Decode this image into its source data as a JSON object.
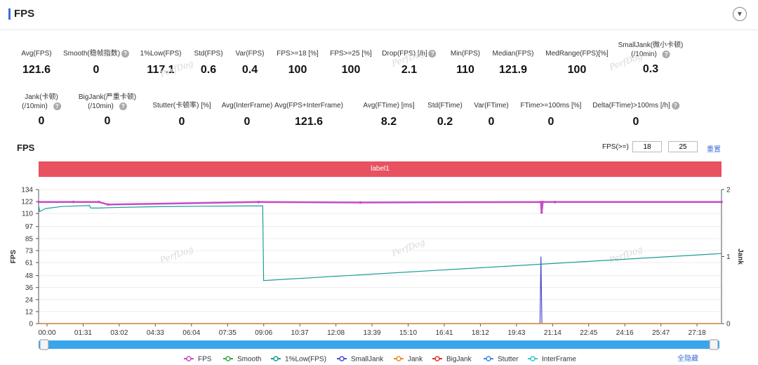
{
  "header": {
    "title": "FPS"
  },
  "stats_row1": [
    {
      "label": "Avg(FPS)",
      "value": "121.6"
    },
    {
      "label": "Smooth(稳帧指数)",
      "value": "0",
      "help": true
    },
    {
      "label": "1%Low(FPS)",
      "value": "117.1"
    },
    {
      "label": "Std(FPS)",
      "value": "0.6"
    },
    {
      "label": "Var(FPS)",
      "value": "0.4"
    },
    {
      "label": "FPS>=18 [%]",
      "value": "100"
    },
    {
      "label": "FPS>=25 [%]",
      "value": "100"
    },
    {
      "label": "Drop(FPS) [/h]",
      "value": "2.1",
      "help": true
    },
    {
      "label": "Min(FPS)",
      "value": "110"
    },
    {
      "label": "Median(FPS)",
      "value": "121.9"
    },
    {
      "label": "MedRange(FPS)[%]",
      "value": "100"
    },
    {
      "label": "SmallJank(微小卡顿)",
      "label2": "(/10min)",
      "value": "0.3",
      "help": true
    }
  ],
  "stats_row2": [
    {
      "label": "Jank(卡顿)",
      "label2": "(/10min)",
      "value": "0",
      "help": true
    },
    {
      "label": "BigJank(严重卡顿)",
      "label2": "(/10min)",
      "value": "0",
      "help": true
    },
    {
      "label": "Stutter(卡顿率) [%]",
      "value": "0"
    },
    {
      "label": "Avg(InterFrame)",
      "value": "0"
    },
    {
      "label": "Avg(FPS+InterFrame)",
      "value": "121.6"
    },
    {
      "label": "Avg(FTime) [ms]",
      "value": "8.2"
    },
    {
      "label": "Std(FTime)",
      "value": "0.2"
    },
    {
      "label": "Var(FTime)",
      "value": "0"
    },
    {
      "label": "FTime>=100ms [%]",
      "value": "0"
    },
    {
      "label": "Delta(FTime)>100ms [/h]",
      "value": "0",
      "help": true
    }
  ],
  "controls": {
    "chart_title": "FPS",
    "fps_filter_label": "FPS(>=)",
    "fps_threshold_1": "18",
    "fps_threshold_2": "25",
    "reset_label": "重置",
    "band_label": "label1",
    "hide_all_label": "全隐藏"
  },
  "watermark": "PerfDog",
  "colors": {
    "FPS": "#c74bc4",
    "Smooth": "#3fa84a",
    "1%Low(FPS)": "#1a9e96",
    "SmallJank": "#4a4fc7",
    "Jank": "#ee8a2a",
    "BigJank": "#d9342b",
    "Stutter": "#3b8ad9",
    "InterFrame": "#3fc2d4",
    "band": "#e8515f",
    "slider": "#3aa5ea"
  },
  "chart_data": {
    "type": "line",
    "ylabel": "FPS",
    "y2label": "Jank",
    "ylim": [
      0,
      134
    ],
    "y_ticks": [
      0,
      12,
      24,
      36,
      48,
      61,
      73,
      85,
      97,
      110,
      122,
      134
    ],
    "y2lim": [
      0,
      2
    ],
    "y2_ticks": [
      0,
      1,
      2
    ],
    "xlim_min": [
      0,
      29.5
    ],
    "x_tick_labels": [
      "00:00",
      "01:31",
      "03:02",
      "04:33",
      "06:04",
      "07:35",
      "09:06",
      "10:37",
      "12:08",
      "13:39",
      "15:10",
      "16:41",
      "18:12",
      "19:43",
      "21:14",
      "22:45",
      "24:16",
      "25:47",
      "27:18"
    ],
    "series": [
      {
        "name": "FPS",
        "axis": "left",
        "x": [
          0,
          1.5,
          2.6,
          3.0,
          9.5,
          13.9,
          21.7,
          21.73,
          21.78,
          22.3,
          29.5
        ],
        "y": [
          121.6,
          121.6,
          121.6,
          119.0,
          121.5,
          121.0,
          121.5,
          111.0,
          121.5,
          121.5,
          121.5
        ]
      },
      {
        "name": "Smooth",
        "axis": "left",
        "x": [
          0,
          29.5
        ],
        "y": [
          0,
          0
        ]
      },
      {
        "name": "1%Low(FPS)",
        "axis": "left",
        "x": [
          0,
          0.05,
          0.3,
          1.0,
          2.2,
          2.25,
          2.6,
          3.2,
          5.0,
          7.0,
          9.0,
          9.68,
          9.72,
          29.5
        ],
        "y": [
          118,
          112,
          115,
          117,
          118,
          115.5,
          115.5,
          116,
          116.8,
          117.3,
          117.6,
          117.6,
          43,
          70
        ]
      },
      {
        "name": "SmallJank",
        "axis": "right",
        "x": [
          0,
          21.66,
          21.7,
          21.74,
          29.5
        ],
        "y": [
          0,
          0,
          1,
          0,
          0
        ]
      },
      {
        "name": "Jank",
        "axis": "left",
        "x": [
          0,
          29.5
        ],
        "y": [
          0,
          0
        ]
      },
      {
        "name": "BigJank",
        "axis": "left",
        "x": [],
        "y": []
      },
      {
        "name": "Stutter",
        "axis": "left",
        "x": [],
        "y": []
      },
      {
        "name": "InterFrame",
        "axis": "left",
        "x": [],
        "y": []
      }
    ],
    "legend_position": "bottom",
    "grid": true
  }
}
